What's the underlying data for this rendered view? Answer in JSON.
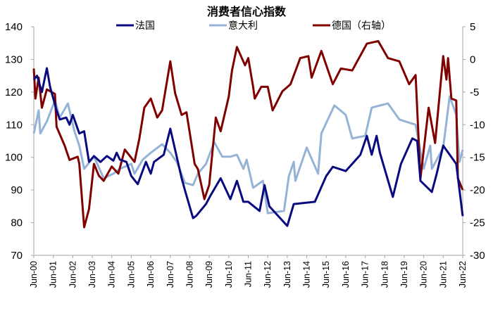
{
  "chart_data": {
    "type": "line",
    "title": "消费者信心指数",
    "legend_position": "top",
    "grid": false,
    "x_ticks": [
      "Jun-00",
      "Jun-01",
      "Jun-02",
      "Jun-03",
      "Jun-04",
      "Jun-05",
      "Jun-06",
      "Jun-07",
      "Jun-08",
      "Jun-09",
      "Jun-10",
      "Jun-11",
      "Jun-12",
      "Jun-13",
      "Jun-14",
      "Jun-15",
      "Jun-16",
      "Jun-17",
      "Jun-18",
      "Jun-19",
      "Jun-20",
      "Jun-21",
      "Jun-22"
    ],
    "xlim": [
      "2000-06",
      "2022-06"
    ],
    "y_left": {
      "ylim": [
        70,
        140
      ],
      "ticks": [
        "70",
        "80",
        "90",
        "100",
        "110",
        "120",
        "130",
        "140"
      ]
    },
    "y_right": {
      "ylim": [
        -30,
        5
      ],
      "ticks": [
        "-30",
        "-25",
        "-20",
        "-15",
        "-10",
        "-5",
        "0",
        "5"
      ],
      "negative_color": "#ff0000"
    },
    "series": [
      {
        "name": "法国",
        "axis": "left",
        "color": "#0a0a80",
        "points": [
          [
            "2000-06",
            123.8
          ],
          [
            "2000-08",
            125
          ],
          [
            "2000-11",
            120
          ],
          [
            "2001-02",
            127.3
          ],
          [
            "2001-04",
            121.6
          ],
          [
            "2001-08",
            114.4
          ],
          [
            "2001-10",
            111.6
          ],
          [
            "2002-02",
            112.2
          ],
          [
            "2002-04",
            110
          ],
          [
            "2002-06",
            113
          ],
          [
            "2002-10",
            107.3
          ],
          [
            "2003-01",
            108
          ],
          [
            "2003-04",
            98.6
          ],
          [
            "2003-07",
            100.4
          ],
          [
            "2003-11",
            98.6
          ],
          [
            "2004-03",
            100.4
          ],
          [
            "2004-07",
            99
          ],
          [
            "2004-09",
            101.4
          ],
          [
            "2004-11",
            99.3
          ],
          [
            "2005-03",
            98.6
          ],
          [
            "2005-06",
            94.3
          ],
          [
            "2005-10",
            91.8
          ],
          [
            "2006-03",
            98.6
          ],
          [
            "2006-06",
            95
          ],
          [
            "2006-08",
            98.6
          ],
          [
            "2007-02",
            100.8
          ],
          [
            "2007-06",
            108.8
          ],
          [
            "2007-09",
            102.3
          ],
          [
            "2008-01",
            93.6
          ],
          [
            "2008-03",
            90
          ],
          [
            "2008-08",
            81.4
          ],
          [
            "2008-10",
            82.1
          ],
          [
            "2009-04",
            85.7
          ],
          [
            "2009-07",
            88.5
          ],
          [
            "2010-01",
            93.6
          ],
          [
            "2010-07",
            87.2
          ],
          [
            "2010-11",
            92.8
          ],
          [
            "2011-03",
            86.4
          ],
          [
            "2011-06",
            86.4
          ],
          [
            "2012-01",
            83.6
          ],
          [
            "2012-04",
            91.5
          ],
          [
            "2012-07",
            85
          ],
          [
            "2013-06",
            79
          ],
          [
            "2013-10",
            85.7
          ],
          [
            "2014-11",
            86.4
          ],
          [
            "2015-06",
            94.3
          ],
          [
            "2015-10",
            97.1
          ],
          [
            "2016-06",
            95.8
          ],
          [
            "2017-03",
            100.8
          ],
          [
            "2017-07",
            106.6
          ],
          [
            "2017-10",
            100.8
          ],
          [
            "2018-01",
            106.6
          ],
          [
            "2018-03",
            101.4
          ],
          [
            "2018-11",
            87.9
          ],
          [
            "2019-04",
            98
          ],
          [
            "2019-11",
            105.8
          ],
          [
            "2020-02",
            105
          ],
          [
            "2020-04",
            92.8
          ],
          [
            "2020-11",
            89.4
          ],
          [
            "2021-02",
            95
          ],
          [
            "2021-06",
            103.6
          ],
          [
            "2022-02",
            98
          ],
          [
            "2022-06",
            82
          ]
        ]
      },
      {
        "name": "意大利",
        "axis": "left",
        "color": "#95b3d7",
        "points": [
          [
            "2000-06",
            107.3
          ],
          [
            "2000-09",
            114.4
          ],
          [
            "2000-10",
            107.3
          ],
          [
            "2001-02",
            111
          ],
          [
            "2001-07",
            117.4
          ],
          [
            "2001-10",
            112.2
          ],
          [
            "2002-03",
            116.5
          ],
          [
            "2002-07",
            108
          ],
          [
            "2002-10",
            103.6
          ],
          [
            "2003-01",
            96.5
          ],
          [
            "2003-07",
            100.2
          ],
          [
            "2004-01",
            93.6
          ],
          [
            "2004-07",
            95
          ],
          [
            "2004-11",
            96.5
          ],
          [
            "2005-06",
            98
          ],
          [
            "2005-08",
            95
          ],
          [
            "2006-01",
            99.3
          ],
          [
            "2006-06",
            101.4
          ],
          [
            "2007-01",
            104
          ],
          [
            "2007-06",
            101.4
          ],
          [
            "2007-10",
            98.6
          ],
          [
            "2008-03",
            92.2
          ],
          [
            "2008-08",
            91.5
          ],
          [
            "2008-11",
            95
          ],
          [
            "2009-04",
            98
          ],
          [
            "2009-09",
            104.7
          ],
          [
            "2010-02",
            100.2
          ],
          [
            "2010-07",
            100.2
          ],
          [
            "2010-11",
            100.8
          ],
          [
            "2011-03",
            96.5
          ],
          [
            "2011-05",
            99.3
          ],
          [
            "2011-09",
            90.7
          ],
          [
            "2012-03",
            92.8
          ],
          [
            "2012-06",
            82.9
          ],
          [
            "2013-04",
            83.6
          ],
          [
            "2013-07",
            94.3
          ],
          [
            "2013-10",
            98.6
          ],
          [
            "2013-11",
            92.8
          ],
          [
            "2014-06",
            103
          ],
          [
            "2015-01",
            95
          ],
          [
            "2015-03",
            107.3
          ],
          [
            "2015-11",
            115.9
          ],
          [
            "2016-06",
            113
          ],
          [
            "2016-10",
            105.8
          ],
          [
            "2017-06",
            106.6
          ],
          [
            "2017-10",
            115.2
          ],
          [
            "2018-08",
            116.5
          ],
          [
            "2019-03",
            111.6
          ],
          [
            "2020-01",
            110
          ],
          [
            "2020-06",
            96.5
          ],
          [
            "2020-10",
            103.6
          ],
          [
            "2020-11",
            96.5
          ],
          [
            "2021-06",
            103
          ],
          [
            "2021-10",
            118.7
          ],
          [
            "2022-02",
            113
          ],
          [
            "2022-04",
            98.6
          ],
          [
            "2022-06",
            102.3
          ]
        ]
      },
      {
        "name": "德国（右轴）",
        "axis": "right",
        "color": "#800000",
        "points": [
          [
            "2000-06",
            -1.4
          ],
          [
            "2000-07",
            -6
          ],
          [
            "2000-09",
            -2.8
          ],
          [
            "2000-11",
            -7.4
          ],
          [
            "2001-02",
            -4.6
          ],
          [
            "2001-07",
            -5.3
          ],
          [
            "2001-08",
            -10.3
          ],
          [
            "2002-01",
            -13.2
          ],
          [
            "2002-04",
            -15.4
          ],
          [
            "2002-09",
            -14.9
          ],
          [
            "2002-10",
            -16
          ],
          [
            "2003-01",
            -25.7
          ],
          [
            "2003-04",
            -22.9
          ],
          [
            "2003-07",
            -16
          ],
          [
            "2003-10",
            -17.8
          ],
          [
            "2004-01",
            -18.6
          ],
          [
            "2004-06",
            -16.4
          ],
          [
            "2004-10",
            -17.5
          ],
          [
            "2005-02",
            -13.8
          ],
          [
            "2005-08",
            -15.7
          ],
          [
            "2005-11",
            -12.1
          ],
          [
            "2006-02",
            -7.4
          ],
          [
            "2006-06",
            -6
          ],
          [
            "2006-10",
            -8.9
          ],
          [
            "2007-01",
            -7.8
          ],
          [
            "2007-06",
            -0.3
          ],
          [
            "2007-09",
            -5.2
          ],
          [
            "2008-01",
            -8.5
          ],
          [
            "2008-04",
            -8.1
          ],
          [
            "2008-09",
            -16
          ],
          [
            "2008-11",
            -16.8
          ],
          [
            "2009-03",
            -21.4
          ],
          [
            "2009-06",
            -19.2
          ],
          [
            "2009-10",
            -8.9
          ],
          [
            "2010-01",
            -11
          ],
          [
            "2010-06",
            -5.7
          ],
          [
            "2010-08",
            -1.7
          ],
          [
            "2010-11",
            1.9
          ],
          [
            "2011-04",
            -0.9
          ],
          [
            "2011-06",
            0.2
          ],
          [
            "2011-09",
            -4.2
          ],
          [
            "2011-10",
            -6
          ],
          [
            "2012-02",
            -4.2
          ],
          [
            "2012-06",
            -4.2
          ],
          [
            "2012-09",
            -7.8
          ],
          [
            "2013-03",
            -4.9
          ],
          [
            "2013-08",
            -3.8
          ],
          [
            "2014-02",
            0.2
          ],
          [
            "2014-07",
            0.5
          ],
          [
            "2014-09",
            -2.8
          ],
          [
            "2015-03",
            1.3
          ],
          [
            "2015-10",
            -3.8
          ],
          [
            "2016-03",
            -1.4
          ],
          [
            "2016-10",
            -1.7
          ],
          [
            "2017-07",
            2.4
          ],
          [
            "2018-02",
            2.8
          ],
          [
            "2018-08",
            0.2
          ],
          [
            "2019-03",
            -0.3
          ],
          [
            "2019-09",
            -3.8
          ],
          [
            "2020-01",
            -2.4
          ],
          [
            "2020-04",
            -18.2
          ],
          [
            "2020-09",
            -7.4
          ],
          [
            "2021-01",
            -12.8
          ],
          [
            "2021-06",
            0.5
          ],
          [
            "2021-08",
            -3.1
          ],
          [
            "2021-09",
            0.2
          ],
          [
            "2021-11",
            -6
          ],
          [
            "2022-02",
            -6.3
          ],
          [
            "2022-03",
            -18.2
          ],
          [
            "2022-06",
            -20
          ]
        ]
      }
    ]
  }
}
